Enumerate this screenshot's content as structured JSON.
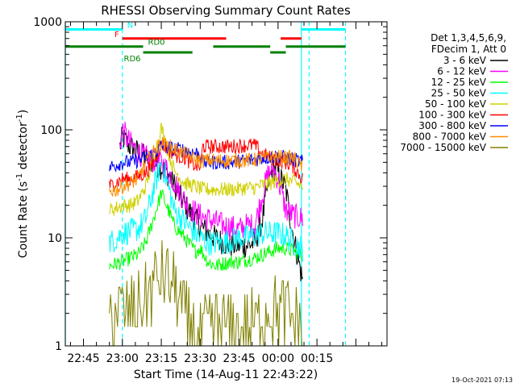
{
  "chart_data": {
    "type": "line",
    "title": "RHESSI Observing Summary Count Rates",
    "xlabel": "Start Time (14-Aug-11 22:43:22)",
    "ylabel": "Count Rate (s⁻¹ detector⁻¹)",
    "ylabel_main": "Count Rate (s",
    "ylabel_mid": " detector",
    "ylabel_end": ")",
    "ylabel_sup": "-1",
    "y_scale": "log",
    "ylim": [
      1,
      1000
    ],
    "xlim_minutes": [
      -22,
      102
    ],
    "x_ticks": [
      {
        "m": -15,
        "label": "22:45"
      },
      {
        "m": 0,
        "label": "23:00"
      },
      {
        "m": 15,
        "label": "23:15"
      },
      {
        "m": 30,
        "label": "23:30"
      },
      {
        "m": 45,
        "label": "23:45"
      },
      {
        "m": 60,
        "label": "00:00"
      },
      {
        "m": 75,
        "label": "00:15"
      }
    ],
    "y_ticks": [
      {
        "v": 1,
        "label": "1"
      },
      {
        "v": 10,
        "label": "10"
      },
      {
        "v": 100,
        "label": "100"
      },
      {
        "v": 1000,
        "label": "1000"
      }
    ],
    "legend_position": "right",
    "legend_header": [
      "Det 1,3,4,5,6,9,",
      "FDecim 1, Att 0"
    ],
    "series": [
      {
        "name": "3 - 6 keV",
        "color": "#000000",
        "points": [
          [
            -1,
            70
          ],
          [
            0,
            85
          ],
          [
            3,
            70
          ],
          [
            6,
            62
          ],
          [
            9,
            55
          ],
          [
            12,
            50
          ],
          [
            15,
            45
          ],
          [
            18,
            38
          ],
          [
            21,
            28
          ],
          [
            24,
            20
          ],
          [
            27,
            16
          ],
          [
            30,
            13
          ],
          [
            33,
            11
          ],
          [
            36,
            10
          ],
          [
            39,
            9
          ],
          [
            42,
            8.5
          ],
          [
            45,
            8.5
          ],
          [
            48,
            8.5
          ],
          [
            51,
            9
          ],
          [
            54,
            15
          ],
          [
            56,
            30
          ],
          [
            58,
            45
          ],
          [
            60,
            40
          ],
          [
            63,
            28
          ],
          [
            66,
            10
          ],
          [
            68,
            6
          ],
          [
            69.5,
            4
          ]
        ]
      },
      {
        "name": "6 - 12 keV",
        "color": "#ff00ff",
        "points": [
          [
            -1,
            70
          ],
          [
            0,
            100
          ],
          [
            3,
            75
          ],
          [
            6,
            62
          ],
          [
            9,
            55
          ],
          [
            12,
            52
          ],
          [
            15,
            50
          ],
          [
            18,
            40
          ],
          [
            21,
            30
          ],
          [
            24,
            22
          ],
          [
            27,
            18
          ],
          [
            30,
            16
          ],
          [
            33,
            15
          ],
          [
            36,
            14
          ],
          [
            39,
            13
          ],
          [
            42,
            12.5
          ],
          [
            45,
            12
          ],
          [
            48,
            13
          ],
          [
            51,
            13
          ],
          [
            54,
            25
          ],
          [
            56,
            38
          ],
          [
            58,
            45
          ],
          [
            60,
            35
          ],
          [
            63,
            18
          ],
          [
            66,
            16
          ],
          [
            69.5,
            15
          ]
        ]
      },
      {
        "name": "12 - 25 keV",
        "color": "#00ff00",
        "points": [
          [
            -5,
            5.5
          ],
          [
            -2,
            5.8
          ],
          [
            0,
            6
          ],
          [
            3,
            6.5
          ],
          [
            6,
            7
          ],
          [
            9,
            9
          ],
          [
            12,
            15
          ],
          [
            15,
            26
          ],
          [
            17,
            20
          ],
          [
            20,
            13
          ],
          [
            24,
            10
          ],
          [
            28,
            7.5
          ],
          [
            30,
            8
          ],
          [
            33,
            6
          ],
          [
            36,
            5.5
          ],
          [
            39,
            5.8
          ],
          [
            42,
            6
          ],
          [
            45,
            6
          ],
          [
            48,
            6.3
          ],
          [
            51,
            6.5
          ],
          [
            54,
            7
          ],
          [
            57,
            7.5
          ],
          [
            60,
            8
          ],
          [
            63,
            8
          ],
          [
            66,
            7.5
          ],
          [
            69.5,
            7
          ]
        ]
      },
      {
        "name": "25 - 50 keV",
        "color": "#00ffff",
        "points": [
          [
            -5,
            9
          ],
          [
            -2,
            10
          ],
          [
            0,
            11
          ],
          [
            3,
            11.5
          ],
          [
            6,
            12
          ],
          [
            9,
            15
          ],
          [
            12,
            28
          ],
          [
            15,
            50
          ],
          [
            17,
            35
          ],
          [
            20,
            18
          ],
          [
            24,
            14
          ],
          [
            28,
            11
          ],
          [
            30,
            10
          ],
          [
            33,
            9
          ],
          [
            36,
            9
          ],
          [
            39,
            9
          ],
          [
            42,
            9.5
          ],
          [
            45,
            10
          ],
          [
            48,
            10
          ],
          [
            51,
            10.5
          ],
          [
            54,
            11
          ],
          [
            57,
            11
          ],
          [
            60,
            11
          ],
          [
            63,
            10.5
          ],
          [
            66,
            9
          ],
          [
            69.5,
            8
          ]
        ]
      },
      {
        "name": "50 - 100 keV",
        "color": "#d0d000",
        "points": [
          [
            -5,
            18
          ],
          [
            -2,
            19
          ],
          [
            0,
            20
          ],
          [
            3,
            20
          ],
          [
            6,
            22
          ],
          [
            9,
            30
          ],
          [
            12,
            55
          ],
          [
            14,
            85
          ],
          [
            15,
            105
          ],
          [
            17,
            70
          ],
          [
            20,
            42
          ],
          [
            24,
            32
          ],
          [
            28,
            30
          ],
          [
            31,
            28
          ],
          [
            36,
            28
          ],
          [
            42,
            28
          ],
          [
            48,
            29
          ],
          [
            51,
            29
          ],
          [
            54,
            31
          ],
          [
            57,
            32
          ],
          [
            60,
            34
          ],
          [
            63,
            35
          ],
          [
            66,
            33
          ],
          [
            69.5,
            30
          ]
        ]
      },
      {
        "name": "100 - 300 keV",
        "color": "#ff0000",
        "points": [
          [
            -5,
            30
          ],
          [
            -2,
            33
          ],
          [
            0,
            35
          ],
          [
            3,
            35
          ],
          [
            6,
            37
          ],
          [
            9,
            40
          ],
          [
            12,
            50
          ],
          [
            15,
            75
          ],
          [
            18,
            65
          ],
          [
            21,
            58
          ],
          [
            24,
            55
          ],
          [
            27,
            48
          ],
          [
            30,
            45
          ],
          [
            31,
            70
          ],
          [
            36,
            70
          ],
          [
            42,
            70
          ],
          [
            48,
            72
          ],
          [
            51,
            72
          ],
          [
            54,
            60
          ],
          [
            57,
            55
          ],
          [
            60,
            52
          ],
          [
            63,
            50
          ],
          [
            66,
            45
          ],
          [
            69.5,
            35
          ]
        ]
      },
      {
        "name": "300 - 800 keV",
        "color": "#0000ff",
        "points": [
          [
            -5,
            45
          ],
          [
            -2,
            48
          ],
          [
            0,
            50
          ],
          [
            3,
            50
          ],
          [
            6,
            52
          ],
          [
            9,
            55
          ],
          [
            12,
            60
          ],
          [
            15,
            70
          ],
          [
            18,
            68
          ],
          [
            21,
            66
          ],
          [
            24,
            65
          ],
          [
            27,
            62
          ],
          [
            30,
            60
          ],
          [
            31,
            50
          ],
          [
            36,
            50
          ],
          [
            42,
            50
          ],
          [
            48,
            52
          ],
          [
            51,
            53
          ],
          [
            54,
            55
          ],
          [
            57,
            56
          ],
          [
            60,
            57
          ],
          [
            63,
            55
          ],
          [
            66,
            53
          ],
          [
            69.5,
            50
          ]
        ]
      },
      {
        "name": "800 - 7000 keV",
        "color": "#ff8c00",
        "points": [
          [
            -5,
            27
          ],
          [
            -2,
            28
          ],
          [
            0,
            30
          ],
          [
            3,
            32
          ],
          [
            6,
            35
          ],
          [
            8,
            45
          ],
          [
            12,
            62
          ],
          [
            15,
            75
          ],
          [
            18,
            70
          ],
          [
            21,
            65
          ],
          [
            24,
            60
          ],
          [
            27,
            55
          ],
          [
            30,
            52
          ],
          [
            36,
            52
          ],
          [
            42,
            52
          ],
          [
            48,
            52
          ],
          [
            51,
            53
          ],
          [
            54,
            54
          ],
          [
            57,
            56
          ],
          [
            60,
            56
          ],
          [
            63,
            55
          ],
          [
            66,
            55
          ],
          [
            69.5,
            45
          ]
        ]
      },
      {
        "name": "7000 - 15000 keV",
        "color": "#808000",
        "points": [
          [
            -5,
            2
          ],
          [
            -1,
            2.2
          ],
          [
            2,
            2
          ],
          [
            5,
            2.2
          ],
          [
            8,
            2.5
          ],
          [
            10,
            3
          ],
          [
            12,
            3.8
          ],
          [
            14,
            4.2
          ],
          [
            16,
            4.5
          ],
          [
            18,
            4
          ],
          [
            20,
            3.5
          ],
          [
            22,
            2.5
          ],
          [
            24,
            1.8
          ],
          [
            26,
            1.6
          ],
          [
            28,
            1.3
          ],
          [
            30,
            1.2
          ],
          [
            33,
            1.4
          ],
          [
            36,
            1.6
          ],
          [
            39,
            1.5
          ],
          [
            42,
            1.4
          ],
          [
            45,
            1.3
          ],
          [
            48,
            1.5
          ],
          [
            51,
            1.6
          ],
          [
            54,
            2
          ],
          [
            57,
            2.3
          ],
          [
            60,
            2.2
          ],
          [
            63,
            2.1
          ],
          [
            66,
            1.8
          ],
          [
            69.5,
            1.5
          ]
        ]
      }
    ],
    "flags": [
      {
        "label": "N",
        "color": "#00ffff",
        "level": 850,
        "segments": [
          [
            -22,
            0
          ],
          [
            69,
            86
          ]
        ]
      },
      {
        "label": "F",
        "color": "#ff0000",
        "level": 700,
        "segments": [
          [
            0,
            40
          ],
          [
            61,
            69
          ]
        ]
      },
      {
        "label": "RD0",
        "color": "#008000",
        "level": 590,
        "segments": [
          [
            -22,
            8
          ],
          [
            35,
            57
          ],
          [
            63,
            86
          ]
        ]
      },
      {
        "label": "RD6",
        "color": "#008000",
        "level": 520,
        "segments": [
          [
            8,
            27
          ],
          [
            57,
            63
          ]
        ]
      }
    ],
    "vertical_markers": [
      {
        "m": -22,
        "color": "#00ffff",
        "style": "solid"
      },
      {
        "m": 0,
        "color": "#00ffff",
        "style": "dashed"
      },
      {
        "m": 69,
        "color": "#00ffff",
        "style": "solid"
      },
      {
        "m": 72,
        "color": "#00ffff",
        "style": "dashed"
      },
      {
        "m": 86,
        "color": "#00ffff",
        "style": "dashed"
      }
    ]
  },
  "footer": {
    "timestamp": "19-Oct-2021 07:13"
  }
}
